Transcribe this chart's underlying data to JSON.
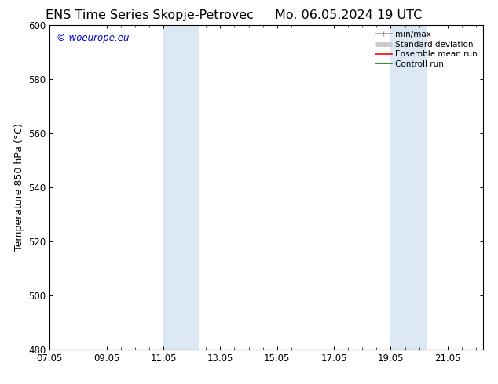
{
  "title_left": "ENS Time Series Skopje-Petrovec",
  "title_right": "Mo. 06.05.2024 19 UTC",
  "ylabel": "Temperature 850 hPa (°C)",
  "xlim_left": 0.0,
  "xlim_right": 15.25,
  "ylim_bottom": 480,
  "ylim_top": 600,
  "yticks": [
    480,
    500,
    520,
    540,
    560,
    580,
    600
  ],
  "xtick_positions": [
    0,
    2,
    4,
    6,
    8,
    10,
    12,
    14
  ],
  "xtick_labels": [
    "07.05",
    "09.05",
    "11.05",
    "13.05",
    "15.05",
    "17.05",
    "19.05",
    "21.05"
  ],
  "x_minor_positions": [
    0.5,
    1.0,
    1.5,
    2.5,
    3.0,
    3.5,
    4.5,
    5.0,
    5.5,
    6.5,
    7.0,
    7.5,
    8.5,
    9.0,
    9.5,
    10.5,
    11.0,
    11.5,
    12.5,
    13.0,
    13.5,
    14.5,
    15.0
  ],
  "shaded_regions": [
    {
      "x_start": 4.0,
      "x_end": 5.25,
      "color": "#dce9f5"
    },
    {
      "x_start": 12.0,
      "x_end": 13.25,
      "color": "#dce9f5"
    }
  ],
  "watermark_text": "© woeurope.eu",
  "watermark_color": "#0000cc",
  "bg_color": "#ffffff",
  "legend_items": [
    {
      "label": "min/max",
      "color": "#999999",
      "lw": 1.2
    },
    {
      "label": "Standard deviation",
      "color": "#cccccc",
      "lw": 5
    },
    {
      "label": "Ensemble mean run",
      "color": "#ff0000",
      "lw": 1.2
    },
    {
      "label": "Controll run",
      "color": "#008000",
      "lw": 1.2
    }
  ],
  "grid_color": "#cccccc",
  "spine_color": "#000000",
  "title_fontsize": 11.5,
  "axis_label_fontsize": 9,
  "tick_fontsize": 8.5,
  "legend_fontsize": 7.5
}
